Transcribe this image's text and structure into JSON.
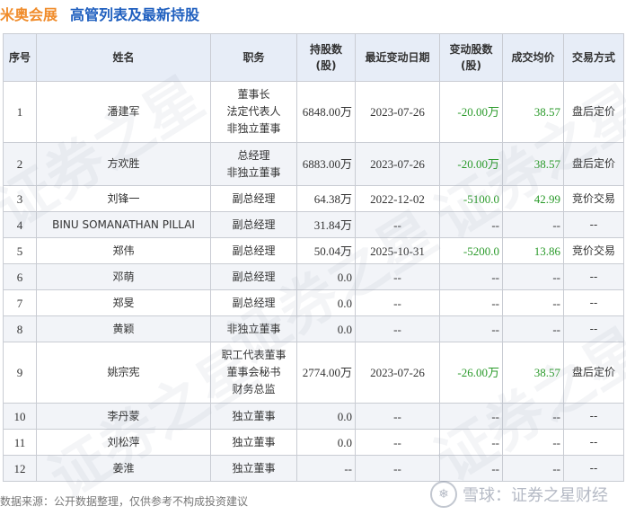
{
  "header": {
    "company": "米奥会展",
    "subtitle": "高管列表及最新持股"
  },
  "watermark": {
    "text": "证券之星"
  },
  "table": {
    "columns": [
      "序号",
      "姓名",
      "职务",
      "持股数\n(股)",
      "最近变动日期",
      "变动股数\n(股)",
      "成交均价",
      "交易方式"
    ],
    "rows": [
      {
        "no": "1",
        "name": "潘建军",
        "roles": [
          "董事长",
          "法定代表人",
          "非独立董事"
        ],
        "shares": "6848.00万",
        "date": "2023-07-26",
        "change": "-20.00万",
        "price": "38.57",
        "method": "盘后定价"
      },
      {
        "no": "2",
        "name": "方欢胜",
        "roles": [
          "总经理",
          "非独立董事"
        ],
        "shares": "6883.00万",
        "date": "2023-07-26",
        "change": "-20.00万",
        "price": "38.57",
        "method": "盘后定价"
      },
      {
        "no": "3",
        "name": "刘锋一",
        "roles": [
          "副总经理"
        ],
        "shares": "64.38万",
        "date": "2022-12-02",
        "change": "-5100.0",
        "price": "42.99",
        "method": "竞价交易"
      },
      {
        "no": "4",
        "name": "BINU SOMANATHAN PILLAI",
        "roles": [
          "副总经理"
        ],
        "shares": "31.84万",
        "date": "--",
        "change": "--",
        "price": "--",
        "method": "--"
      },
      {
        "no": "5",
        "name": "郑伟",
        "roles": [
          "副总经理"
        ],
        "shares": "50.04万",
        "date": "2025-10-31",
        "change": "-5200.0",
        "price": "13.86",
        "method": "竞价交易"
      },
      {
        "no": "6",
        "name": "邓萌",
        "roles": [
          "副总经理"
        ],
        "shares": "0.0",
        "date": "--",
        "change": "--",
        "price": "--",
        "method": "--"
      },
      {
        "no": "7",
        "name": "郑旻",
        "roles": [
          "副总经理"
        ],
        "shares": "0.0",
        "date": "--",
        "change": "--",
        "price": "--",
        "method": "--"
      },
      {
        "no": "8",
        "name": "黄颖",
        "roles": [
          "非独立董事"
        ],
        "shares": "0.0",
        "date": "--",
        "change": "--",
        "price": "--",
        "method": "--"
      },
      {
        "no": "9",
        "name": "姚宗宪",
        "roles": [
          "职工代表董事",
          "董事会秘书",
          "财务总监"
        ],
        "shares": "2774.00万",
        "date": "2023-07-26",
        "change": "-26.00万",
        "price": "38.57",
        "method": "盘后定价"
      },
      {
        "no": "10",
        "name": "李丹蒙",
        "roles": [
          "独立董事"
        ],
        "shares": "0.0",
        "date": "--",
        "change": "--",
        "price": "--",
        "method": "--"
      },
      {
        "no": "11",
        "name": "刘松萍",
        "roles": [
          "独立董事"
        ],
        "shares": "0.0",
        "date": "--",
        "change": "--",
        "price": "--",
        "method": "--"
      },
      {
        "no": "12",
        "name": "姜淮",
        "roles": [
          "独立董事"
        ],
        "shares": "--",
        "date": "--",
        "change": "--",
        "price": "--",
        "method": "--"
      }
    ]
  },
  "footer": {
    "source": "数据来源：公开数据整理，仅供参考不构成投资建议",
    "brand": "雪球：证券之星财经"
  },
  "colors": {
    "company": "#f08c2b",
    "subtitle": "#1f5fbf",
    "header_bg": "#e7edf7",
    "change": "#2a9a2a"
  }
}
